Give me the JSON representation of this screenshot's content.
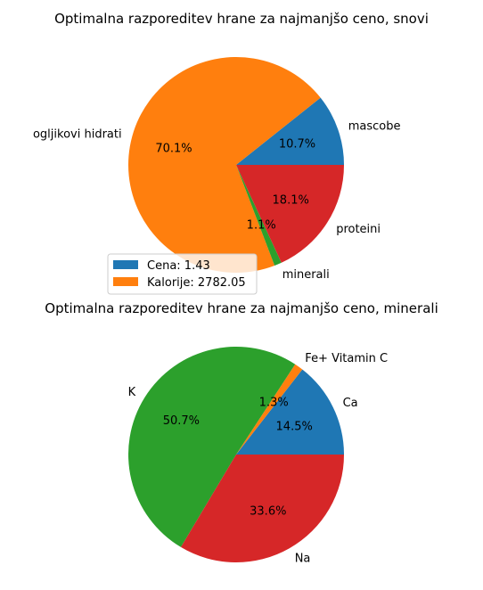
{
  "chart_data": [
    {
      "type": "pie",
      "title": "Optimalna razporeditev hrane za najmanjšo ceno, snovi",
      "categories": [
        "mascobe",
        "ogljikovi hidrati",
        "minerali",
        "proteini"
      ],
      "values": [
        10.7,
        70.1,
        1.1,
        18.1
      ],
      "percent_labels": [
        "10.7%",
        "70.1%",
        "1.1%",
        "18.1%"
      ],
      "colors": [
        "#1f77b4",
        "#ff7f0e",
        "#2ca02c",
        "#d62728"
      ],
      "start_angle_deg": 0,
      "direction": "counterclockwise",
      "legend": {
        "placement": "lower-left",
        "entries": [
          {
            "label": "Cena: 1.43",
            "color": "#1f77b4"
          },
          {
            "label": "Kalorije: 2782.05",
            "color": "#ff7f0e"
          }
        ]
      }
    },
    {
      "type": "pie",
      "title": "Optimalna razporeditev hrane za najmanjšo ceno, minerali",
      "categories": [
        "Ca",
        "Fe+ Vitamin C",
        "K",
        "Na"
      ],
      "values": [
        14.5,
        1.3,
        50.7,
        33.6
      ],
      "percent_labels": [
        "14.5%",
        "1.3%",
        "50.7%",
        "33.6%"
      ],
      "colors": [
        "#1f77b4",
        "#ff7f0e",
        "#2ca02c",
        "#d62728"
      ],
      "start_angle_deg": 0,
      "direction": "counterclockwise"
    }
  ]
}
